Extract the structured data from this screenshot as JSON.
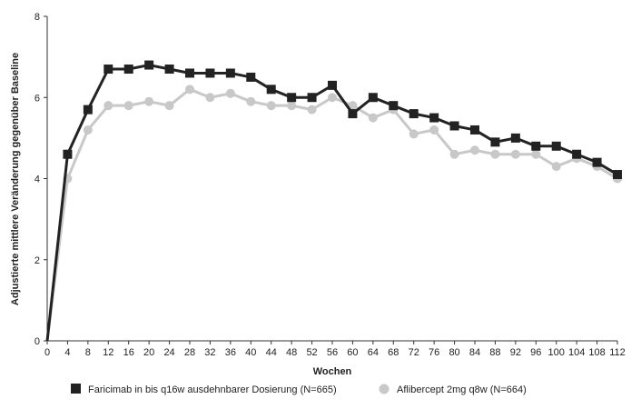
{
  "chart_data": {
    "type": "line",
    "title": "",
    "xlabel": "Wochen",
    "ylabel": "Adjustierte mittlere Veränderung gegenüber Baseline",
    "xlim": [
      0,
      112
    ],
    "ylim": [
      0,
      8
    ],
    "x_ticks": [
      0,
      4,
      8,
      12,
      16,
      20,
      24,
      28,
      32,
      36,
      40,
      44,
      48,
      52,
      56,
      60,
      64,
      68,
      72,
      76,
      80,
      84,
      88,
      92,
      96,
      100,
      104,
      108,
      112
    ],
    "y_ticks": [
      0,
      2,
      4,
      6,
      8
    ],
    "grid": false,
    "legend_position": "bottom",
    "series": [
      {
        "name": "Faricimab in bis q16w ausdehnbarer Dosierung (N=665)",
        "color": "#222222",
        "marker": "square",
        "x": [
          0,
          4,
          8,
          12,
          16,
          20,
          24,
          28,
          32,
          36,
          40,
          44,
          48,
          52,
          56,
          60,
          64,
          68,
          72,
          76,
          80,
          84,
          88,
          92,
          96,
          100,
          104,
          108,
          112
        ],
        "y": [
          0,
          4.6,
          5.7,
          6.7,
          6.7,
          6.8,
          6.7,
          6.6,
          6.6,
          6.6,
          6.5,
          6.2,
          6.0,
          6.0,
          6.3,
          5.6,
          6.0,
          5.8,
          5.6,
          5.5,
          5.3,
          5.2,
          4.9,
          5.0,
          4.8,
          4.8,
          4.6,
          4.4,
          4.1
        ]
      },
      {
        "name": "Aflibercept 2mg q8w (N=664)",
        "color": "#c8c8c8",
        "marker": "circle",
        "x": [
          0,
          4,
          8,
          12,
          16,
          20,
          24,
          28,
          32,
          36,
          40,
          44,
          48,
          52,
          56,
          60,
          64,
          68,
          72,
          76,
          80,
          84,
          88,
          92,
          96,
          100,
          104,
          108,
          112
        ],
        "y": [
          0,
          4.0,
          5.2,
          5.8,
          5.8,
          5.9,
          5.8,
          6.2,
          6.0,
          6.1,
          5.9,
          5.8,
          5.8,
          5.7,
          6.0,
          5.8,
          5.5,
          5.7,
          5.1,
          5.2,
          4.6,
          4.7,
          4.6,
          4.6,
          4.6,
          4.3,
          4.5,
          4.3,
          4.0
        ]
      }
    ]
  }
}
